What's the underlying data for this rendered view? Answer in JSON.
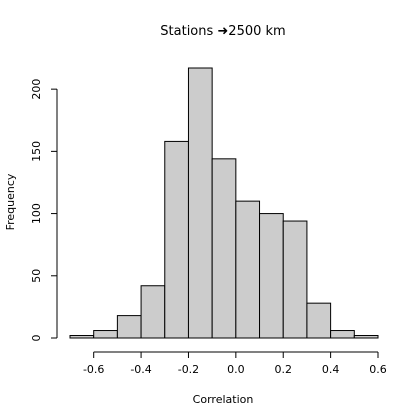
{
  "chart_data": {
    "type": "bar",
    "title": "Stations ➜2500 km",
    "xlabel": "Correlation",
    "ylabel": "Frequency",
    "bin_width": 0.1,
    "bins": [
      {
        "start": -0.7,
        "end": -0.6,
        "count": 2
      },
      {
        "start": -0.6,
        "end": -0.5,
        "count": 6
      },
      {
        "start": -0.5,
        "end": -0.4,
        "count": 18
      },
      {
        "start": -0.4,
        "end": -0.3,
        "count": 42
      },
      {
        "start": -0.3,
        "end": -0.2,
        "count": 158
      },
      {
        "start": -0.2,
        "end": -0.1,
        "count": 217
      },
      {
        "start": -0.1,
        "end": 0.0,
        "count": 144
      },
      {
        "start": 0.0,
        "end": 0.1,
        "count": 110
      },
      {
        "start": 0.1,
        "end": 0.2,
        "count": 100
      },
      {
        "start": 0.2,
        "end": 0.3,
        "count": 94
      },
      {
        "start": 0.3,
        "end": 0.4,
        "count": 28
      },
      {
        "start": 0.4,
        "end": 0.5,
        "count": 6
      },
      {
        "start": 0.5,
        "end": 0.6,
        "count": 2
      }
    ],
    "xlim": [
      -0.7,
      0.6
    ],
    "ylim": [
      0,
      217
    ],
    "xticks": [
      -0.6,
      -0.4,
      -0.2,
      0.0,
      0.2,
      0.4,
      0.6
    ],
    "xtick_labels": [
      "-0.6",
      "-0.4",
      "-0.2",
      "0.0",
      "0.2",
      "0.4",
      "0.6"
    ],
    "yticks": [
      0,
      50,
      100,
      150,
      200
    ],
    "ytick_labels": [
      "0",
      "50",
      "100",
      "150",
      "200"
    ],
    "bar_color": "#cccccc",
    "edge_color": "#000000",
    "grid": false,
    "legend": "none"
  }
}
